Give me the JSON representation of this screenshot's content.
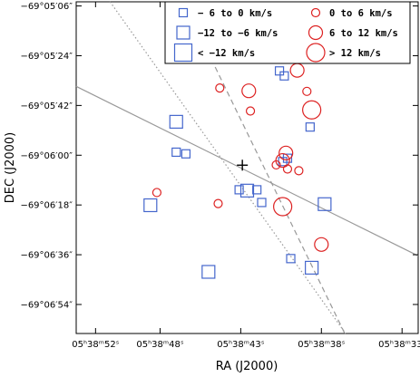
{
  "chart_data": {
    "type": "scatter",
    "xlabel": "RA (J2000)",
    "ylabel": "DEC (J2000)",
    "xlim_sec": [
      53.2,
      32.0
    ],
    "ylim_arcsec": [
      -424.5,
      -304.5
    ],
    "x_ticks": [
      {
        "value": 52,
        "label": "05ʰ38ᵐ52ˢ"
      },
      {
        "value": 48,
        "label": "05ʰ38ᵐ48ˢ"
      },
      {
        "value": 43,
        "label": "05ʰ38ᵐ43ˢ"
      },
      {
        "value": 38,
        "label": "05ʰ38ᵐ38ˢ"
      },
      {
        "value": 33,
        "label": "05ʰ38ᵐ33ˢ"
      }
    ],
    "y_ticks": [
      {
        "value": -306,
        "label": "−69°05′06″"
      },
      {
        "value": -324,
        "label": "−69°05′24″"
      },
      {
        "value": -342,
        "label": "−69°05′42″"
      },
      {
        "value": -360,
        "label": "−69°06′00″"
      },
      {
        "value": -378,
        "label": "−69°06′18″"
      },
      {
        "value": -396,
        "label": "−69°06′36″"
      },
      {
        "value": -414,
        "label": "−69°06′54″"
      }
    ],
    "center": {
      "ra": 42.9,
      "dec": -363.6
    },
    "lines": [
      {
        "style": "solid",
        "color": "#999999",
        "points": [
          [
            53.2,
            -335.1
          ],
          [
            32.0,
            -396.4
          ]
        ]
      },
      {
        "style": "dashed",
        "color": "#999999",
        "points": [
          [
            46.55,
            -304.5
          ],
          [
            36.55,
            -424.5
          ]
        ]
      },
      {
        "style": "dotted",
        "color": "#999999",
        "points": [
          [
            51.1,
            -304.5
          ],
          [
            36.5,
            -424.5
          ]
        ]
      }
    ],
    "legend": [
      {
        "symbol": "square",
        "color": "#4466cc",
        "size": "small",
        "label": " − 6 to 0 km/s"
      },
      {
        "symbol": "square",
        "color": "#4466cc",
        "size": "medium",
        "label": "−12 to −6 km/s"
      },
      {
        "symbol": "square",
        "color": "#4466cc",
        "size": "large",
        "label": "< −12 km/s"
      },
      {
        "symbol": "circle",
        "color": "#dd2222",
        "size": "small",
        "label": "0 to 6 km/s"
      },
      {
        "symbol": "circle",
        "color": "#dd2222",
        "size": "medium",
        "label": "6 to 12 km/s"
      },
      {
        "symbol": "circle",
        "color": "#dd2222",
        "size": "large",
        "label": "> 12 km/s"
      }
    ],
    "blue_squares": [
      {
        "ra": 40.6,
        "dec": -329.5,
        "size": "small"
      },
      {
        "ra": 40.3,
        "dec": -331.3,
        "size": "small"
      },
      {
        "ra": 38.7,
        "dec": -349.8,
        "size": "small"
      },
      {
        "ra": 47.0,
        "dec": -358.9,
        "size": "small"
      },
      {
        "ra": 46.4,
        "dec": -359.5,
        "size": "small"
      },
      {
        "ra": 40.4,
        "dec": -362.3,
        "size": "small"
      },
      {
        "ra": 40.1,
        "dec": -361.1,
        "size": "small"
      },
      {
        "ra": 43.1,
        "dec": -372.5,
        "size": "small"
      },
      {
        "ra": 42.0,
        "dec": -372.5,
        "size": "small"
      },
      {
        "ra": 41.7,
        "dec": -377.1,
        "size": "small"
      },
      {
        "ra": 39.9,
        "dec": -397.4,
        "size": "small"
      },
      {
        "ra": 47.0,
        "dec": -347.9,
        "size": "medium"
      },
      {
        "ra": 42.6,
        "dec": -372.8,
        "size": "medium"
      },
      {
        "ra": 48.6,
        "dec": -378.1,
        "size": "medium"
      },
      {
        "ra": 37.8,
        "dec": -377.7,
        "size": "medium"
      },
      {
        "ra": 45.0,
        "dec": -402.2,
        "size": "medium"
      },
      {
        "ra": 38.6,
        "dec": -400.7,
        "size": "medium"
      }
    ],
    "red_circles": [
      {
        "ra": 44.3,
        "dec": -335.7,
        "size": "small"
      },
      {
        "ra": 38.9,
        "dec": -336.9,
        "size": "small"
      },
      {
        "ra": 42.4,
        "dec": -344.0,
        "size": "small"
      },
      {
        "ra": 40.8,
        "dec": -363.5,
        "size": "small"
      },
      {
        "ra": 39.4,
        "dec": -365.6,
        "size": "small"
      },
      {
        "ra": 48.2,
        "dec": -373.5,
        "size": "small"
      },
      {
        "ra": 44.4,
        "dec": -377.5,
        "size": "small"
      },
      {
        "ra": 39.5,
        "dec": -329.3,
        "size": "medium"
      },
      {
        "ra": 42.5,
        "dec": -336.7,
        "size": "medium"
      },
      {
        "ra": 40.2,
        "dec": -359.2,
        "size": "medium"
      },
      {
        "ra": 40.4,
        "dec": -361.9,
        "size": "medium"
      },
      {
        "ra": 38.6,
        "dec": -343.6,
        "size": "large"
      },
      {
        "ra": 38.0,
        "dec": -392.3,
        "size": "medium"
      },
      {
        "ra": 40.4,
        "dec": -378.6,
        "size": "large"
      },
      {
        "ra": 40.1,
        "dec": -365.0,
        "size": "small"
      }
    ],
    "colors": {
      "blue": "#4466cc",
      "red": "#dd2222",
      "line": "#999999"
    }
  }
}
